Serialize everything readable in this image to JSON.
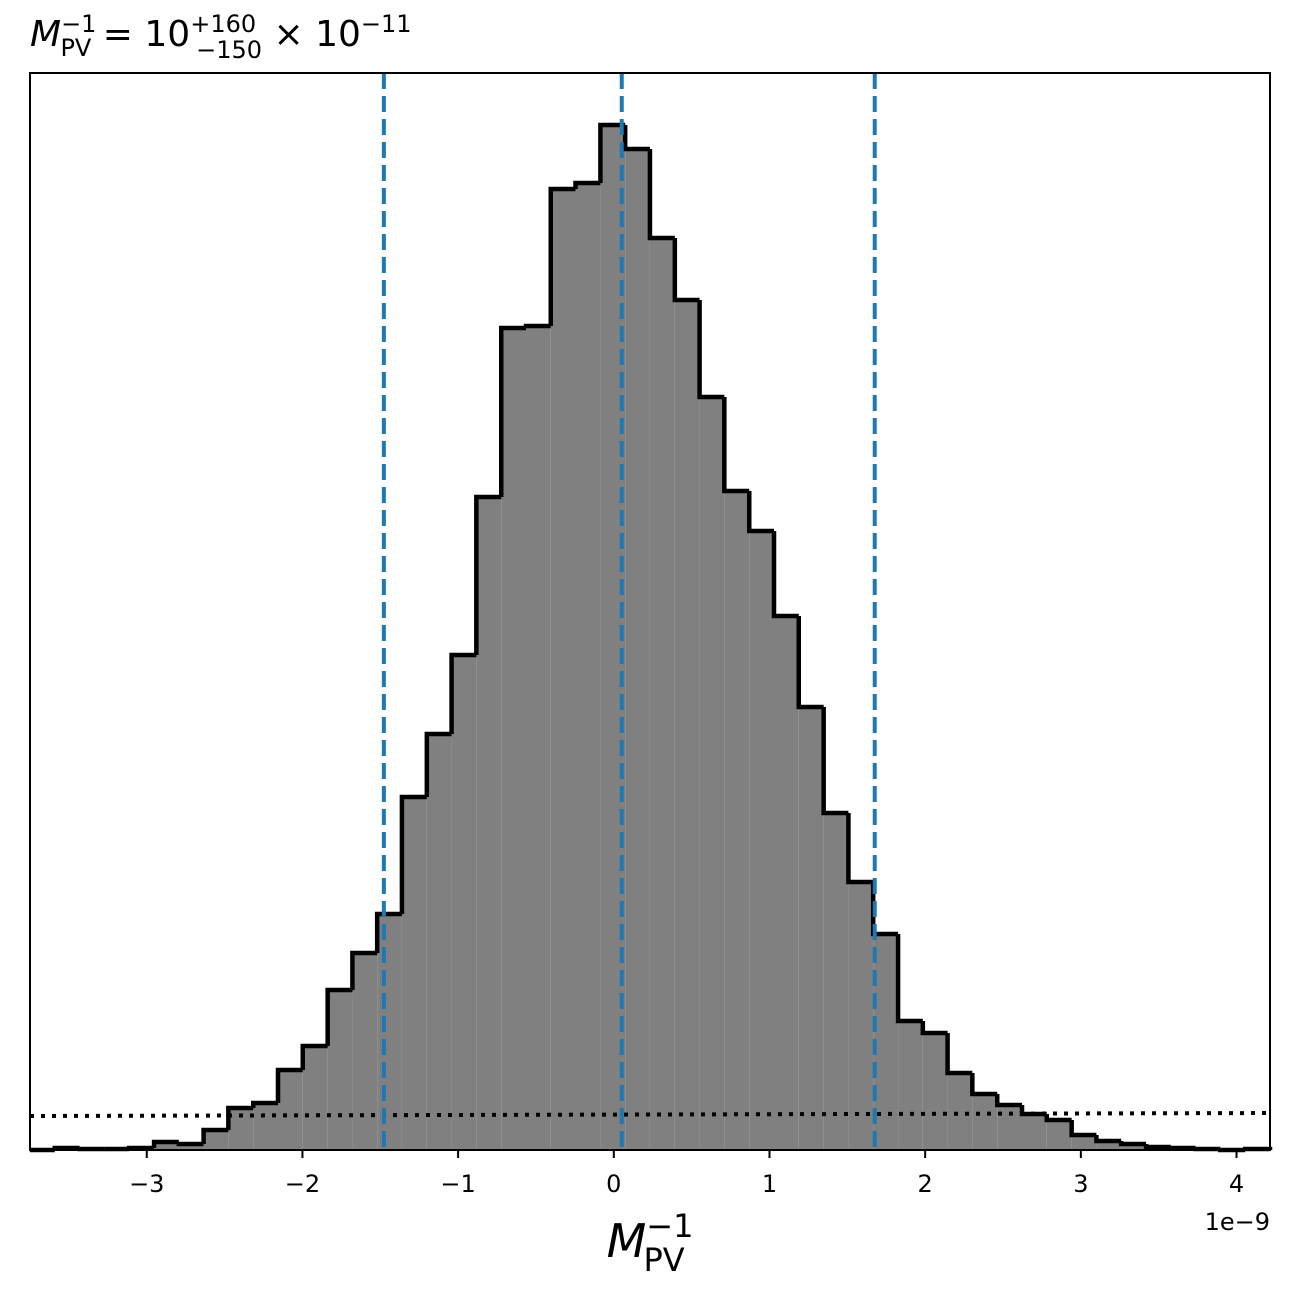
{
  "chart_data": {
    "type": "histogram",
    "title": {
      "symbol": "M",
      "sub": "PV",
      "sup": "−1",
      "eq": " = 10",
      "plus": "+160",
      "minus": "−150",
      "times": " × 10",
      "exp": "−11"
    },
    "xlabel": {
      "symbol": "M",
      "sub": "PV",
      "sup": "−1"
    },
    "x_offset_label": "1e−9",
    "bins": [
      -3.75,
      -3.591,
      -3.431,
      -3.272,
      -3.113,
      -2.953,
      -2.794,
      -2.635,
      -2.476,
      -2.316,
      -2.157,
      -1.998,
      -1.838,
      -1.679,
      -1.52,
      -1.361,
      -1.201,
      -1.042,
      -0.883,
      -0.723,
      -0.564,
      -0.405,
      -0.246,
      -0.086,
      0.073,
      0.232,
      0.392,
      0.551,
      0.71,
      0.87,
      1.029,
      1.188,
      1.348,
      1.507,
      1.666,
      1.826,
      1.985,
      2.144,
      2.303,
      2.463,
      2.622,
      2.781,
      2.941,
      3.1,
      3.259,
      3.419,
      3.578,
      3.737,
      3.896,
      4.056,
      4.215
    ],
    "values": [
      0,
      2,
      1,
      1,
      2,
      8,
      6,
      20,
      42,
      47,
      80,
      104,
      160,
      197,
      236,
      353,
      416,
      495,
      653,
      822,
      824,
      961,
      967,
      1025,
      1001,
      912,
      850,
      753,
      659,
      619,
      534,
      443,
      337,
      268,
      216,
      129,
      117,
      77,
      56,
      45,
      36,
      30,
      15,
      9,
      6,
      3,
      2,
      1,
      0,
      1
    ],
    "color": "#808080",
    "edgecolor": "#000000",
    "xlim": [
      -3.75,
      4.215
    ],
    "ylim": [
      0,
      1077
    ],
    "xticks": [
      {
        "value": -3,
        "label": "−3"
      },
      {
        "value": -2,
        "label": "−2"
      },
      {
        "value": -1,
        "label": "−1"
      },
      0,
      1,
      2,
      3,
      4
    ],
    "vlines": {
      "values": [
        -1.477,
        0.051,
        1.676
      ],
      "color": "#1f77b4"
    },
    "reference_line": {
      "x": [
        -3.75,
        4.215
      ],
      "y": [
        34,
        37
      ],
      "color": "#000000"
    }
  }
}
